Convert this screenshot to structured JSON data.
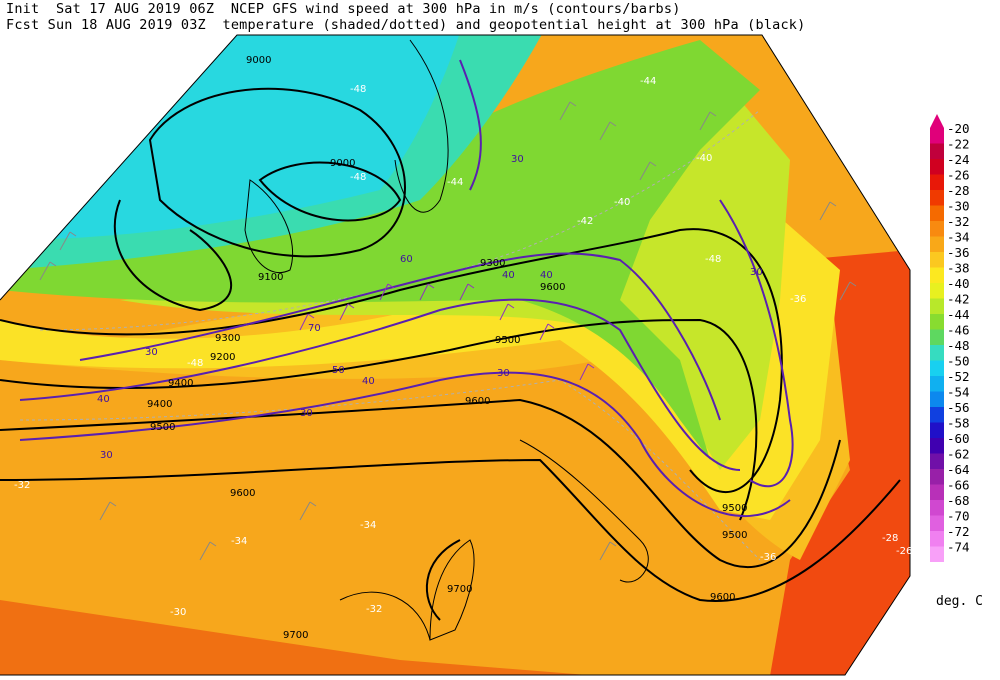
{
  "header": {
    "line1": "Init  Sat 17 AUG 2019 06Z  NCEP GFS wind speed at 300 hPa in m/s (contours/barbs)",
    "line2": "Fcst Sun 18 AUG 2019 03Z  temperature (shaded/dotted) and geopotential height at 300 hPa (black)"
  },
  "legend": {
    "units": "deg. C",
    "levels": [
      {
        "label": "-20",
        "color": "#e0007a"
      },
      {
        "label": "-22",
        "color": "#c0003c"
      },
      {
        "label": "-24",
        "color": "#d00020"
      },
      {
        "label": "-26",
        "color": "#e81808"
      },
      {
        "label": "-28",
        "color": "#f03a00"
      },
      {
        "label": "-30",
        "color": "#f56a00"
      },
      {
        "label": "-32",
        "color": "#f88a10"
      },
      {
        "label": "-34",
        "color": "#f9a818"
      },
      {
        "label": "-36",
        "color": "#fbc820"
      },
      {
        "label": "-38",
        "color": "#fce820"
      },
      {
        "label": "-40",
        "color": "#e8f020"
      },
      {
        "label": "-42",
        "color": "#b8e82a"
      },
      {
        "label": "-44",
        "color": "#88dc30"
      },
      {
        "label": "-46",
        "color": "#5ed860"
      },
      {
        "label": "-48",
        "color": "#36dcc0"
      },
      {
        "label": "-50",
        "color": "#18d0f0"
      },
      {
        "label": "-52",
        "color": "#10b0f0"
      },
      {
        "label": "-54",
        "color": "#0c88ee"
      },
      {
        "label": "-56",
        "color": "#1040e0"
      },
      {
        "label": "-58",
        "color": "#2010c8"
      },
      {
        "label": "-60",
        "color": "#4000b0"
      },
      {
        "label": "-62",
        "color": "#7010a8"
      },
      {
        "label": "-64",
        "color": "#9820a8"
      },
      {
        "label": "-66",
        "color": "#b830b8"
      },
      {
        "label": "-68",
        "color": "#d048d0"
      },
      {
        "label": "-70",
        "color": "#e060e0"
      },
      {
        "label": "-72",
        "color": "#f080f0"
      },
      {
        "label": "-74",
        "color": "#f8a0f8"
      }
    ]
  },
  "map": {
    "height_labels": [
      "9000",
      "9000",
      "9100",
      "9200",
      "9300",
      "9300",
      "9400",
      "9400",
      "9500",
      "9500",
      "9500",
      "9500",
      "9600",
      "9600",
      "9600",
      "9600",
      "9700",
      "9700"
    ],
    "wind_labels": [
      "30",
      "30",
      "30",
      "30",
      "30",
      "30",
      "40",
      "40",
      "40",
      "40",
      "50",
      "60",
      "70"
    ],
    "temp_labels": [
      "-48",
      "-48",
      "-48",
      "-48",
      "-44",
      "-44",
      "-42",
      "-40",
      "-40",
      "-36",
      "-36",
      "-34",
      "-34",
      "-32",
      "-32",
      "-30",
      "-28",
      "-26"
    ]
  }
}
